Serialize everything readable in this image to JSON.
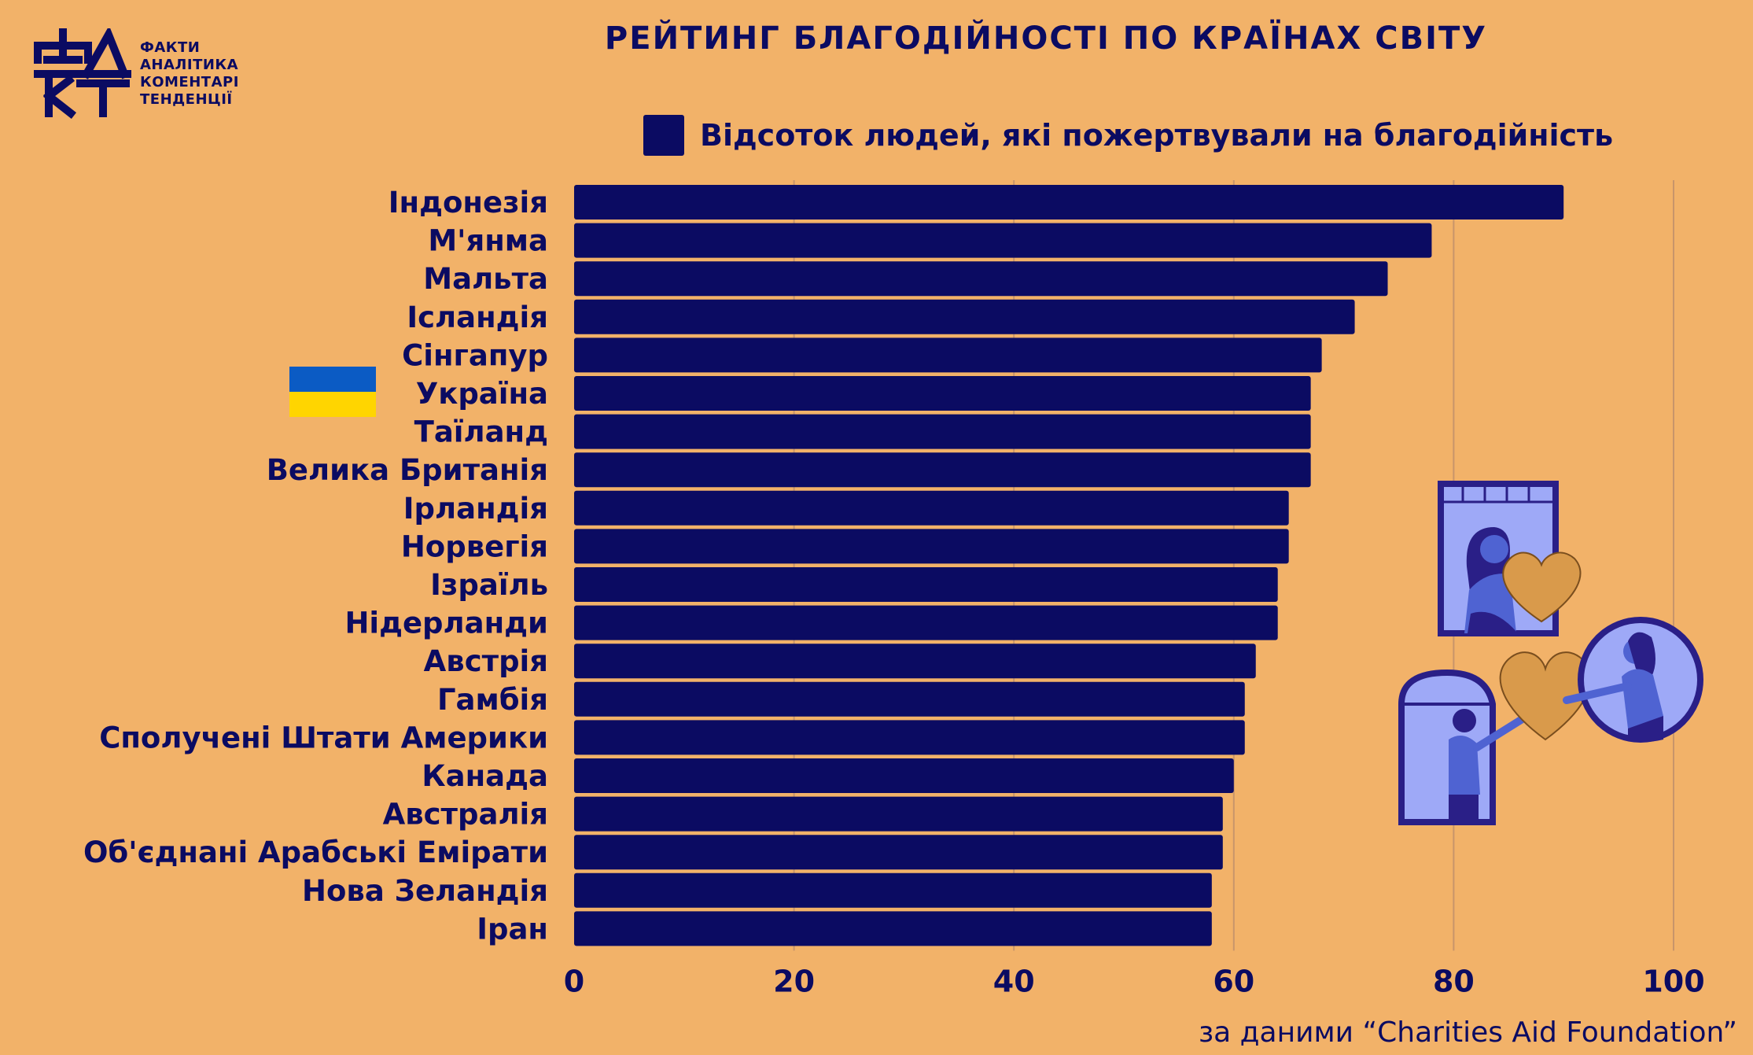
{
  "logo": {
    "mark": "ФАКТ",
    "lines": [
      "ФАКТИ",
      "АНАЛІТИКА",
      "КОМЕНТАРІ",
      "ТЕНДЕНЦІЇ"
    ]
  },
  "legend": {
    "label": "Відсоток людей, які пожертвували на благодійність"
  },
  "source": "за даними “Charities Aid Foundation”",
  "colors": {
    "background": "#F2B269",
    "bar": "#0B0B62",
    "grid": "#C8956A",
    "text": "#0B0B62"
  },
  "flag": {
    "country": "Україна",
    "icon": "ukraine-flag-icon"
  },
  "illustration": {
    "icon": "donation-hearts-illustration"
  },
  "chart_data": {
    "type": "bar",
    "orientation": "horizontal",
    "title": "РЕЙТИНГ БЛАГОДІЙНОСТІ ПО КРАЇНАХ СВІТУ",
    "categories": [
      "Індонезія",
      "М'янма",
      "Мальта",
      "Ісландія",
      "Сінгапур",
      "Україна",
      "Таїланд",
      "Велика Британія",
      "Ірландія",
      "Норвегія",
      "Ізраїль",
      "Нідерланди",
      "Австрія",
      "Гамбія",
      "Сполучені Штати Америки",
      "Канада",
      "Австралія",
      "Об'єднані Арабські Емірати",
      "Нова Зеландія",
      "Іран"
    ],
    "series": [
      {
        "name": "Відсоток людей, які пожертвували на благодійність",
        "values": [
          90,
          78,
          74,
          71,
          68,
          67,
          67,
          67,
          65,
          65,
          64,
          64,
          62,
          61,
          61,
          60,
          59,
          59,
          58,
          58
        ]
      }
    ],
    "xlim": [
      0,
      100
    ],
    "xticks": [
      "0",
      "20",
      "40",
      "60",
      "80",
      "100"
    ],
    "grid": true,
    "legend_position": "top"
  }
}
